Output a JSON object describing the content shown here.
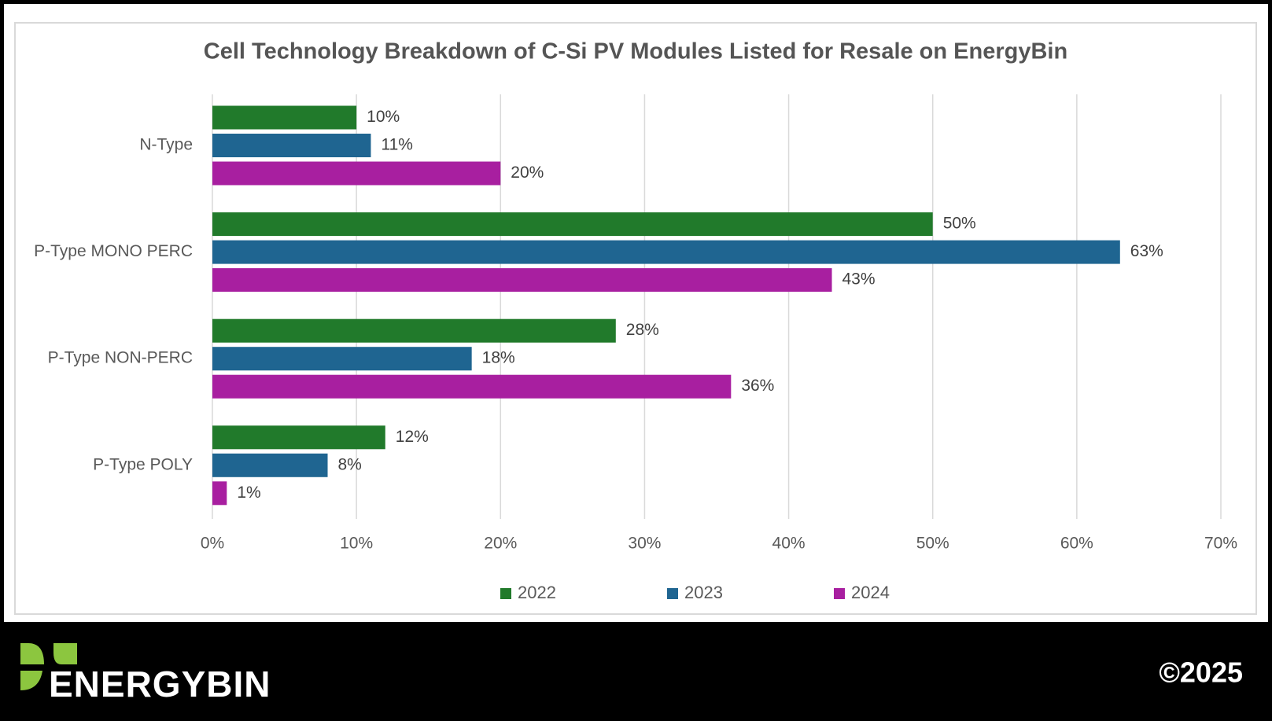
{
  "chart_data": {
    "type": "hbar",
    "title": "Cell Technology Breakdown of C-Si PV Modules Listed for Resale on EnergyBin",
    "categories": [
      "N-Type",
      "P-Type MONO PERC",
      "P-Type NON-PERC",
      "P-Type POLY"
    ],
    "series": [
      {
        "name": "2022",
        "color": "#217a2b",
        "values": [
          10,
          50,
          28,
          12
        ],
        "value_labels": [
          "10%",
          "50%",
          "28%",
          "12%"
        ]
      },
      {
        "name": "2023",
        "color": "#1f6591",
        "values": [
          11,
          63,
          18,
          8
        ],
        "value_labels": [
          "11%",
          "63%",
          "18%",
          "8%"
        ]
      },
      {
        "name": "2024",
        "color": "#a81fa0",
        "values": [
          20,
          43,
          36,
          1
        ],
        "value_labels": [
          "20%",
          "43%",
          "36%",
          "1%"
        ]
      }
    ],
    "xlim": [
      0,
      70
    ],
    "xticks": [
      {
        "value": 0,
        "label": "0%"
      },
      {
        "value": 10,
        "label": "10%"
      },
      {
        "value": 20,
        "label": "20%"
      },
      {
        "value": 30,
        "label": "30%"
      },
      {
        "value": 40,
        "label": "40%"
      },
      {
        "value": 50,
        "label": "50%"
      },
      {
        "value": 60,
        "label": "60%"
      },
      {
        "value": 70,
        "label": "70%"
      }
    ],
    "grid": true,
    "legend": "bottom"
  },
  "footer": {
    "logo_text": "ENERGYBIN",
    "copyright": "©2025"
  }
}
